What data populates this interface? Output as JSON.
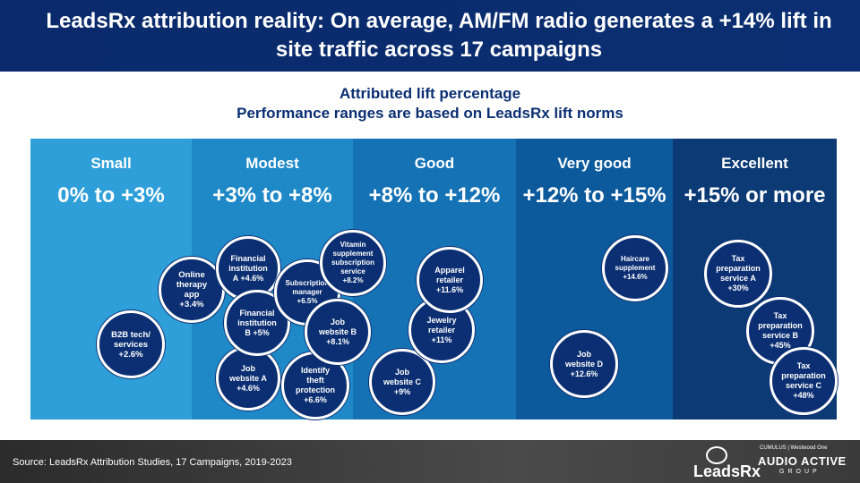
{
  "header": {
    "title": "LeadsRx attribution reality: On average, AM/FM radio generates a +14% lift in site traffic across 17 campaigns"
  },
  "subtitle": {
    "line1": "Attributed lift percentage",
    "line2": "Performance ranges are based on LeadsRx lift norms"
  },
  "bands": [
    {
      "name": "Small",
      "range": "0% to +3%",
      "color": "#2e9fd8"
    },
    {
      "name": "Modest",
      "range": "+3% to +8%",
      "color": "#1f89c8"
    },
    {
      "name": "Good",
      "range": "+8% to +12%",
      "color": "#1573b5"
    },
    {
      "name": "Very good",
      "range": "+12% to +15%",
      "color": "#0c5a9c"
    },
    {
      "name": "Excellent",
      "range": "+15% or more",
      "color": "#0b3a75"
    }
  ],
  "campaigns": [
    {
      "label": "B2B tech/\nservices\n+2.6%"
    },
    {
      "label": "Online\ntherapy\napp\n+3.4%"
    },
    {
      "label": "Financial\ninstitution\nA +4.6%"
    },
    {
      "label": "Job\nwebsite A\n+4.6%"
    },
    {
      "label": "Financial\ninstitution\nB +5%"
    },
    {
      "label": "Subscription\nmanager\n+6.5%"
    },
    {
      "label": "Identify\ntheft\nprotection\n+6.6%"
    },
    {
      "label": "Job\nwebsite B\n+8.1%"
    },
    {
      "label": "Vitamin\nsupplement\nsubscription\nservice\n+8.2%"
    },
    {
      "label": "Job\nwebsite C\n+9%"
    },
    {
      "label": "Jewelry\nretailer\n+11%"
    },
    {
      "label": "Apparel\nretailer\n+11.6%"
    },
    {
      "label": "Job\nwebsite D\n+12.6%"
    },
    {
      "label": "Haircare\nsupplement\n+14.6%"
    },
    {
      "label": "Tax\npreparation\nservice A\n+30%"
    },
    {
      "label": "Tax\npreparation\nservice B\n+45%"
    },
    {
      "label": "Tax\npreparation\nservice C\n+48%"
    }
  ],
  "footer": {
    "source": "Source: LeadsRx Attribution Studies, 17 Campaigns, 2019-2023",
    "logo1_word": "LeadsRx",
    "logo2_top": "CUMULUS | Westwood One",
    "logo2_main": "AUDIO ACTIVE",
    "logo2_sub": "GROUP"
  }
}
